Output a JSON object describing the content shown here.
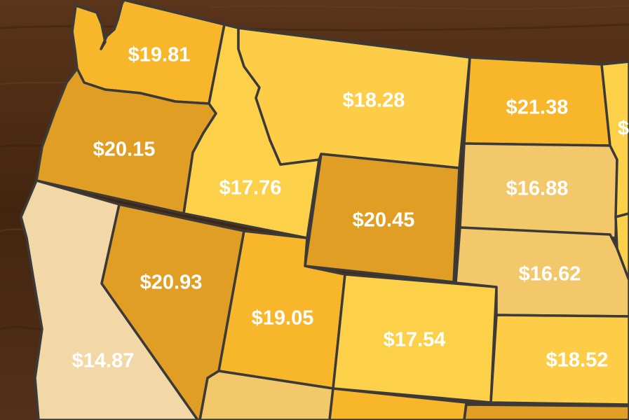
{
  "map": {
    "colors": {
      "background_wood": "#4a2a16",
      "outline": "#3c3a38",
      "label_text": "#ffffff"
    },
    "states": [
      {
        "id": "washington",
        "label": "$19.81",
        "fill": "#f8b62a"
      },
      {
        "id": "oregon",
        "label": "$20.15",
        "fill": "#e19e24"
      },
      {
        "id": "california",
        "label": "$14.87",
        "fill": "#f2d8a6"
      },
      {
        "id": "idaho",
        "label": "$17.76",
        "fill": "#fdd049"
      },
      {
        "id": "nevada",
        "label": "$20.93",
        "fill": "#e19e24"
      },
      {
        "id": "montana",
        "label": "$18.28",
        "fill": "#fdcd48"
      },
      {
        "id": "wyoming",
        "label": "$20.45",
        "fill": "#e19e24"
      },
      {
        "id": "utah",
        "label": "$19.05",
        "fill": "#f8b62a"
      },
      {
        "id": "colorado",
        "label": "$17.54",
        "fill": "#fdd049"
      },
      {
        "id": "north-dakota",
        "label": "$21.38",
        "fill": "#f8b62a"
      },
      {
        "id": "south-dakota",
        "label": "$16.88",
        "fill": "#f2c86a"
      },
      {
        "id": "nebraska",
        "label": "$16.62",
        "fill": "#f2c86a"
      },
      {
        "id": "kansas",
        "label": "$18.52",
        "fill": "#fdcd48"
      },
      {
        "id": "arizona",
        "label": "",
        "fill": "#f2c86a"
      },
      {
        "id": "new-mexico",
        "label": "",
        "fill": "#f8b62a"
      },
      {
        "id": "oklahoma",
        "label": "",
        "fill": "#e19e24"
      },
      {
        "id": "minnesota",
        "label": "$",
        "fill": "#fdd049"
      },
      {
        "id": "iowa",
        "label": "",
        "fill": "#fdd049"
      },
      {
        "id": "missouri",
        "label": "",
        "fill": "#fdcd48"
      }
    ]
  }
}
